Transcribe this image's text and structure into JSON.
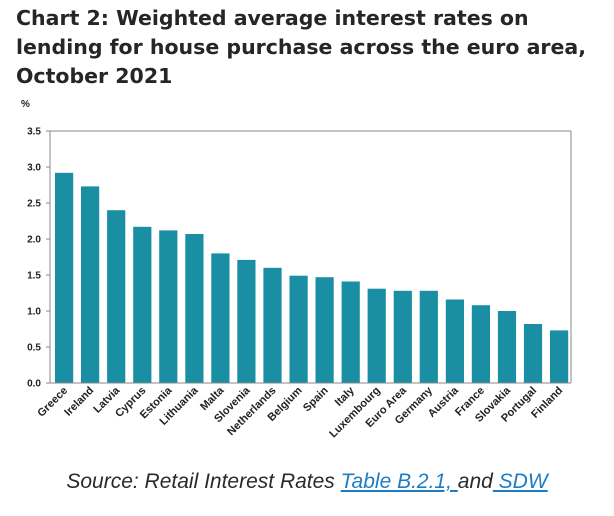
{
  "title": "Chart 2: Weighted average interest rates on lending for house purchase across the euro area, October 2021",
  "chart_data": {
    "type": "bar",
    "title": "Chart 2: Weighted average interest rates on lending for house purchase across the euro area, October 2021",
    "ylabel": "%",
    "xlabel": "",
    "ylim": [
      0,
      3.5
    ],
    "yticks": [
      "0.0",
      "0.5",
      "1.0",
      "1.5",
      "2.0",
      "2.5",
      "3.0",
      "3.5"
    ],
    "categories": [
      "Greece",
      "Ireland",
      "Latvia",
      "Cyprus",
      "Estonia",
      "Lithuania",
      "Malta",
      "Slovenia",
      "Netherlands",
      "Belgium",
      "Spain",
      "Italy",
      "Luxembourg",
      "Euro Area",
      "Germany",
      "Austria",
      "France",
      "Slovakia",
      "Portugal",
      "Finland"
    ],
    "values": [
      2.92,
      2.73,
      2.4,
      2.17,
      2.12,
      2.07,
      1.8,
      1.71,
      1.6,
      1.49,
      1.47,
      1.41,
      1.31,
      1.28,
      1.28,
      1.16,
      1.08,
      1.0,
      0.82,
      0.73
    ],
    "bar_color": "#1a8fa3",
    "grid": false
  },
  "source": {
    "prefix": "Source: Retail Interest Rates ",
    "link1": "Table B.2.1, ",
    "mid": "and",
    "link2": " SDW",
    "link_color": "#1c7dc4"
  }
}
